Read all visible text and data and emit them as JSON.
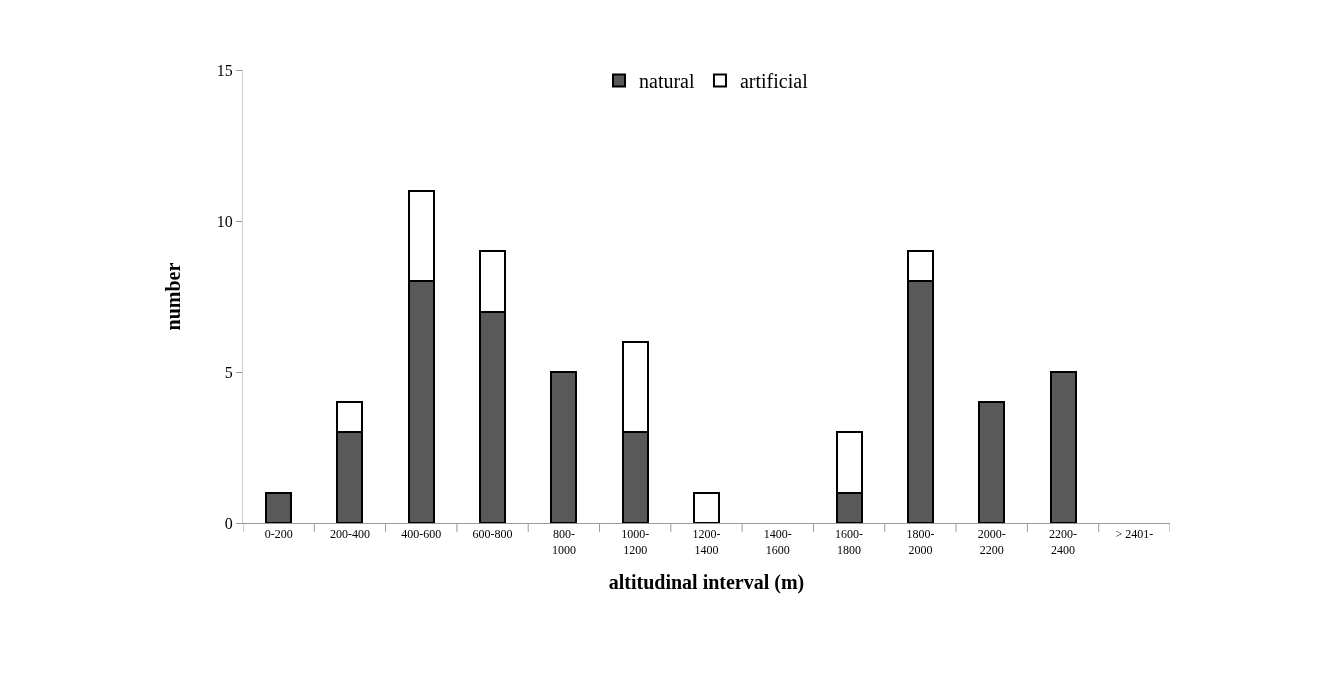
{
  "chart_data": {
    "type": "bar",
    "stacked": true,
    "xlabel": "altitudinal interval (m)",
    "ylabel": "number",
    "categories": [
      "0-200",
      "200-400",
      "400-600",
      "600-800",
      "800-1000",
      "1000-1200",
      "1200-1400",
      "1400-1600",
      "1600-1800",
      "1800-2000",
      "2000-2200",
      "2200-2400",
      "> 2401-"
    ],
    "series": [
      {
        "name": "natural",
        "color": "#595959",
        "values": [
          1,
          3,
          8,
          7,
          5,
          3,
          0,
          0,
          1,
          8,
          4,
          5,
          0
        ]
      },
      {
        "name": "artificial",
        "color": "#ffffff",
        "values": [
          0,
          1,
          3,
          2,
          0,
          3,
          1,
          0,
          2,
          1,
          0,
          0,
          0
        ]
      }
    ],
    "ylim": [
      0,
      15
    ],
    "yticks": [
      0,
      5,
      10,
      15
    ],
    "grid": false,
    "legend": "top"
  }
}
